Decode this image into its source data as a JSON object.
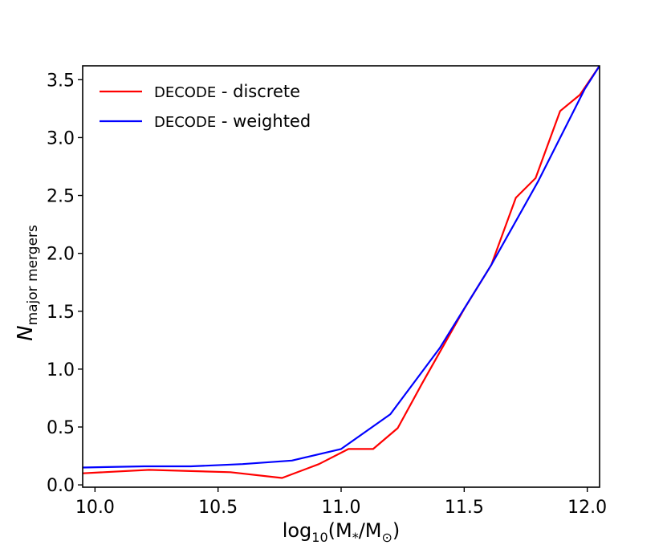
{
  "chart_data": {
    "type": "line",
    "title": "",
    "xlabel": "log10(M*/M⊙)",
    "xlabel_parts": {
      "base": "log",
      "sub": "10",
      "inner": "(M",
      "inner_sub": "*",
      "slash": "/M",
      "sun_sub": "⊙",
      "close": ")"
    },
    "ylabel": "N major mergers",
    "ylabel_parts": {
      "base": "N",
      "sub": "major mergers"
    },
    "xlim": [
      9.95,
      12.05
    ],
    "ylim": [
      -0.02,
      3.62
    ],
    "xticks": [
      10.0,
      10.5,
      11.0,
      11.5,
      12.0
    ],
    "xtick_labels": [
      "10.0",
      "10.5",
      "11.0",
      "11.5",
      "12.0"
    ],
    "yticks": [
      0.0,
      0.5,
      1.0,
      1.5,
      2.0,
      2.5,
      3.0,
      3.5
    ],
    "ytick_labels": [
      "0.0",
      "0.5",
      "1.0",
      "1.5",
      "2.0",
      "2.5",
      "3.0",
      "3.5"
    ],
    "grid": false,
    "legend_position": "top-left",
    "series": [
      {
        "name_prefix": "DECODE",
        "name_suffix": " - discrete",
        "color": "#ff0000",
        "points": [
          [
            9.95,
            0.1
          ],
          [
            10.22,
            0.13
          ],
          [
            10.55,
            0.11
          ],
          [
            10.76,
            0.06
          ],
          [
            10.91,
            0.18
          ],
          [
            11.03,
            0.31
          ],
          [
            11.13,
            0.31
          ],
          [
            11.23,
            0.49
          ],
          [
            11.33,
            0.88
          ],
          [
            11.5,
            1.52
          ],
          [
            11.61,
            1.9
          ],
          [
            11.71,
            2.48
          ],
          [
            11.79,
            2.65
          ],
          [
            11.89,
            3.23
          ],
          [
            11.97,
            3.37
          ],
          [
            12.05,
            3.62
          ]
        ]
      },
      {
        "name_prefix": "DECODE",
        "name_suffix": " - weighted",
        "color": "#0000ff",
        "points": [
          [
            9.95,
            0.15
          ],
          [
            10.2,
            0.16
          ],
          [
            10.39,
            0.16
          ],
          [
            10.6,
            0.18
          ],
          [
            10.8,
            0.21
          ],
          [
            11.0,
            0.31
          ],
          [
            11.2,
            0.61
          ],
          [
            11.4,
            1.18
          ],
          [
            11.61,
            1.9
          ],
          [
            11.8,
            2.62
          ],
          [
            11.99,
            3.42
          ],
          [
            12.05,
            3.62
          ]
        ]
      }
    ]
  }
}
